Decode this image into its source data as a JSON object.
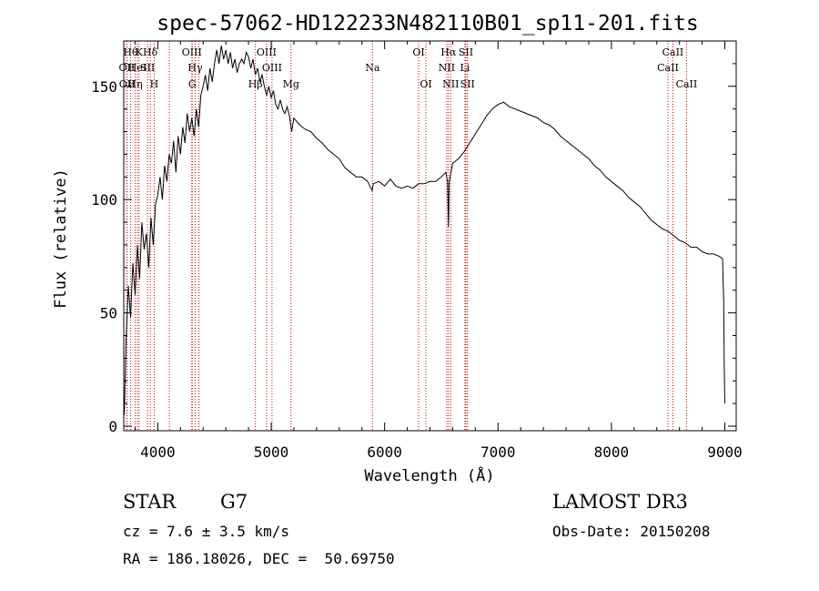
{
  "chart_data": {
    "type": "line",
    "title": "spec-57062-HD122233N482110B01_sp11-201.fits",
    "xlabel": "Wavelength (Å)",
    "ylabel": "Flux (relative)",
    "xlim": [
      3700,
      9100
    ],
    "ylim": [
      -2,
      170
    ],
    "xticks": [
      {
        "value": 4000,
        "label": "4000"
      },
      {
        "value": 5000,
        "label": "5000"
      },
      {
        "value": 6000,
        "label": "6000"
      },
      {
        "value": 7000,
        "label": "7000"
      },
      {
        "value": 8000,
        "label": "8000"
      },
      {
        "value": 9000,
        "label": "9000"
      }
    ],
    "yticks": [
      {
        "value": 0,
        "label": "0"
      },
      {
        "value": 50,
        "label": "50"
      },
      {
        "value": 100,
        "label": "100"
      },
      {
        "value": 150,
        "label": "150"
      }
    ],
    "color_spectrum": "#000000",
    "color_lines": "#cc0000",
    "series": [
      {
        "name": "spectrum",
        "points": [
          [
            3705,
            5
          ],
          [
            3720,
            38
          ],
          [
            3740,
            62
          ],
          [
            3760,
            48
          ],
          [
            3780,
            72
          ],
          [
            3800,
            58
          ],
          [
            3820,
            80
          ],
          [
            3840,
            65
          ],
          [
            3860,
            90
          ],
          [
            3880,
            78
          ],
          [
            3900,
            85
          ],
          [
            3920,
            70
          ],
          [
            3940,
            92
          ],
          [
            3960,
            80
          ],
          [
            3980,
            98
          ],
          [
            4000,
            102
          ],
          [
            4020,
            110
          ],
          [
            4040,
            100
          ],
          [
            4060,
            115
          ],
          [
            4080,
            108
          ],
          [
            4100,
            120
          ],
          [
            4120,
            116
          ],
          [
            4140,
            126
          ],
          [
            4160,
            112
          ],
          [
            4180,
            128
          ],
          [
            4200,
            120
          ],
          [
            4220,
            132
          ],
          [
            4240,
            125
          ],
          [
            4260,
            138
          ],
          [
            4280,
            130
          ],
          [
            4300,
            136
          ],
          [
            4320,
            128
          ],
          [
            4340,
            140
          ],
          [
            4360,
            132
          ],
          [
            4380,
            146
          ],
          [
            4400,
            150
          ],
          [
            4420,
            155
          ],
          [
            4440,
            148
          ],
          [
            4460,
            158
          ],
          [
            4480,
            152
          ],
          [
            4500,
            160
          ],
          [
            4520,
            166
          ],
          [
            4540,
            160
          ],
          [
            4560,
            168
          ],
          [
            4580,
            162
          ],
          [
            4600,
            166
          ],
          [
            4620,
            160
          ],
          [
            4640,
            165
          ],
          [
            4660,
            158
          ],
          [
            4680,
            162
          ],
          [
            4700,
            156
          ],
          [
            4720,
            160
          ],
          [
            4740,
            162
          ],
          [
            4760,
            160
          ],
          [
            4780,
            165
          ],
          [
            4800,
            163
          ],
          [
            4820,
            158
          ],
          [
            4840,
            162
          ],
          [
            4860,
            155
          ],
          [
            4880,
            158
          ],
          [
            4900,
            152
          ],
          [
            4920,
            155
          ],
          [
            4940,
            150
          ],
          [
            4960,
            146
          ],
          [
            4980,
            150
          ],
          [
            5000,
            145
          ],
          [
            5020,
            148
          ],
          [
            5040,
            142
          ],
          [
            5060,
            140
          ],
          [
            5080,
            144
          ],
          [
            5100,
            140
          ],
          [
            5120,
            138
          ],
          [
            5140,
            141
          ],
          [
            5160,
            137
          ],
          [
            5180,
            130
          ],
          [
            5200,
            136
          ],
          [
            5250,
            133
          ],
          [
            5300,
            131
          ],
          [
            5350,
            130
          ],
          [
            5400,
            127
          ],
          [
            5450,
            125
          ],
          [
            5500,
            122
          ],
          [
            5550,
            120
          ],
          [
            5600,
            118
          ],
          [
            5650,
            114
          ],
          [
            5700,
            112
          ],
          [
            5750,
            110
          ],
          [
            5800,
            110
          ],
          [
            5850,
            108
          ],
          [
            5890,
            104
          ],
          [
            5900,
            107
          ],
          [
            5950,
            108
          ],
          [
            6000,
            106
          ],
          [
            6050,
            109
          ],
          [
            6100,
            106
          ],
          [
            6150,
            105
          ],
          [
            6200,
            106
          ],
          [
            6250,
            105
          ],
          [
            6300,
            107
          ],
          [
            6350,
            107
          ],
          [
            6400,
            108
          ],
          [
            6450,
            108
          ],
          [
            6500,
            110
          ],
          [
            6540,
            112
          ],
          [
            6555,
            108
          ],
          [
            6563,
            88
          ],
          [
            6570,
            108
          ],
          [
            6600,
            116
          ],
          [
            6650,
            118
          ],
          [
            6700,
            121
          ],
          [
            6750,
            125
          ],
          [
            6800,
            129
          ],
          [
            6850,
            133
          ],
          [
            6900,
            137
          ],
          [
            6950,
            140
          ],
          [
            7000,
            142
          ],
          [
            7050,
            143
          ],
          [
            7100,
            141
          ],
          [
            7150,
            140
          ],
          [
            7200,
            139
          ],
          [
            7250,
            138
          ],
          [
            7300,
            137
          ],
          [
            7350,
            136
          ],
          [
            7400,
            134
          ],
          [
            7450,
            133
          ],
          [
            7500,
            131
          ],
          [
            7550,
            128
          ],
          [
            7600,
            126
          ],
          [
            7650,
            124
          ],
          [
            7700,
            122
          ],
          [
            7750,
            120
          ],
          [
            7800,
            118
          ],
          [
            7850,
            115
          ],
          [
            7900,
            113
          ],
          [
            7950,
            110
          ],
          [
            8000,
            108
          ],
          [
            8050,
            106
          ],
          [
            8100,
            104
          ],
          [
            8150,
            101
          ],
          [
            8200,
            99
          ],
          [
            8250,
            97
          ],
          [
            8300,
            94
          ],
          [
            8350,
            91
          ],
          [
            8400,
            89
          ],
          [
            8450,
            87
          ],
          [
            8500,
            86
          ],
          [
            8550,
            84
          ],
          [
            8600,
            82
          ],
          [
            8650,
            81
          ],
          [
            8700,
            79
          ],
          [
            8750,
            79
          ],
          [
            8800,
            77
          ],
          [
            8850,
            76
          ],
          [
            8900,
            76
          ],
          [
            8950,
            75
          ],
          [
            8980,
            74
          ],
          [
            8990,
            55
          ],
          [
            8995,
            25
          ],
          [
            9000,
            10
          ]
        ]
      }
    ],
    "lines": [
      {
        "wavelength": 3760,
        "label": "Hθ",
        "row": 0
      },
      {
        "wavelength": 3727,
        "label": "OII",
        "row": 1
      },
      {
        "wavelength": 3729,
        "label": "OII",
        "row": 2
      },
      {
        "wavelength": 3835,
        "label": "K",
        "row": 0
      },
      {
        "wavelength": 3820,
        "label": "HeI",
        "row": 1
      },
      {
        "wavelength": 3800,
        "label": "Hη",
        "row": 2
      },
      {
        "wavelength": 3934,
        "label": "Hδ",
        "row": 0
      },
      {
        "wavelength": 3910,
        "label": "SII",
        "row": 1
      },
      {
        "wavelength": 3968,
        "label": "H",
        "row": 2
      },
      {
        "wavelength": 4102,
        "label": "",
        "row": 0
      },
      {
        "wavelength": 4300,
        "label": "OIII",
        "row": 0
      },
      {
        "wavelength": 4330,
        "label": "Hγ",
        "row": 1
      },
      {
        "wavelength": 4304,
        "label": "G",
        "row": 2
      },
      {
        "wavelength": 4363,
        "label": "",
        "row": 0
      },
      {
        "wavelength": 4861,
        "label": "Hβ",
        "row": 2
      },
      {
        "wavelength": 4959,
        "label": "OIII",
        "row": 0
      },
      {
        "wavelength": 5007,
        "label": "OIII",
        "row": 1
      },
      {
        "wavelength": 5175,
        "label": "Mg",
        "row": 2
      },
      {
        "wavelength": 5893,
        "label": "Na",
        "row": 1
      },
      {
        "wavelength": 6300,
        "label": "OI",
        "row": 0
      },
      {
        "wavelength": 6364,
        "label": "OI",
        "row": 2
      },
      {
        "wavelength": 6548,
        "label": "NII",
        "row": 1
      },
      {
        "wavelength": 6563,
        "label": "Hα",
        "row": 0
      },
      {
        "wavelength": 6583,
        "label": "NII",
        "row": 2
      },
      {
        "wavelength": 6708,
        "label": "Li",
        "row": 1
      },
      {
        "wavelength": 6717,
        "label": "SII",
        "row": 0
      },
      {
        "wavelength": 6731,
        "label": "SII",
        "row": 2
      },
      {
        "wavelength": 8498,
        "label": "CaII",
        "row": 1
      },
      {
        "wavelength": 8542,
        "label": "CaII",
        "row": 0
      },
      {
        "wavelength": 8662,
        "label": "CaII",
        "row": 2
      }
    ]
  },
  "info": {
    "object_class": "STAR",
    "subclass": "G7",
    "cz": "cz = 7.6 ± 3.5 km/s",
    "coords": "RA = 186.18026, DEC =  50.69750",
    "survey": "LAMOST DR3",
    "obs_date": "Obs-Date: 20150208"
  }
}
